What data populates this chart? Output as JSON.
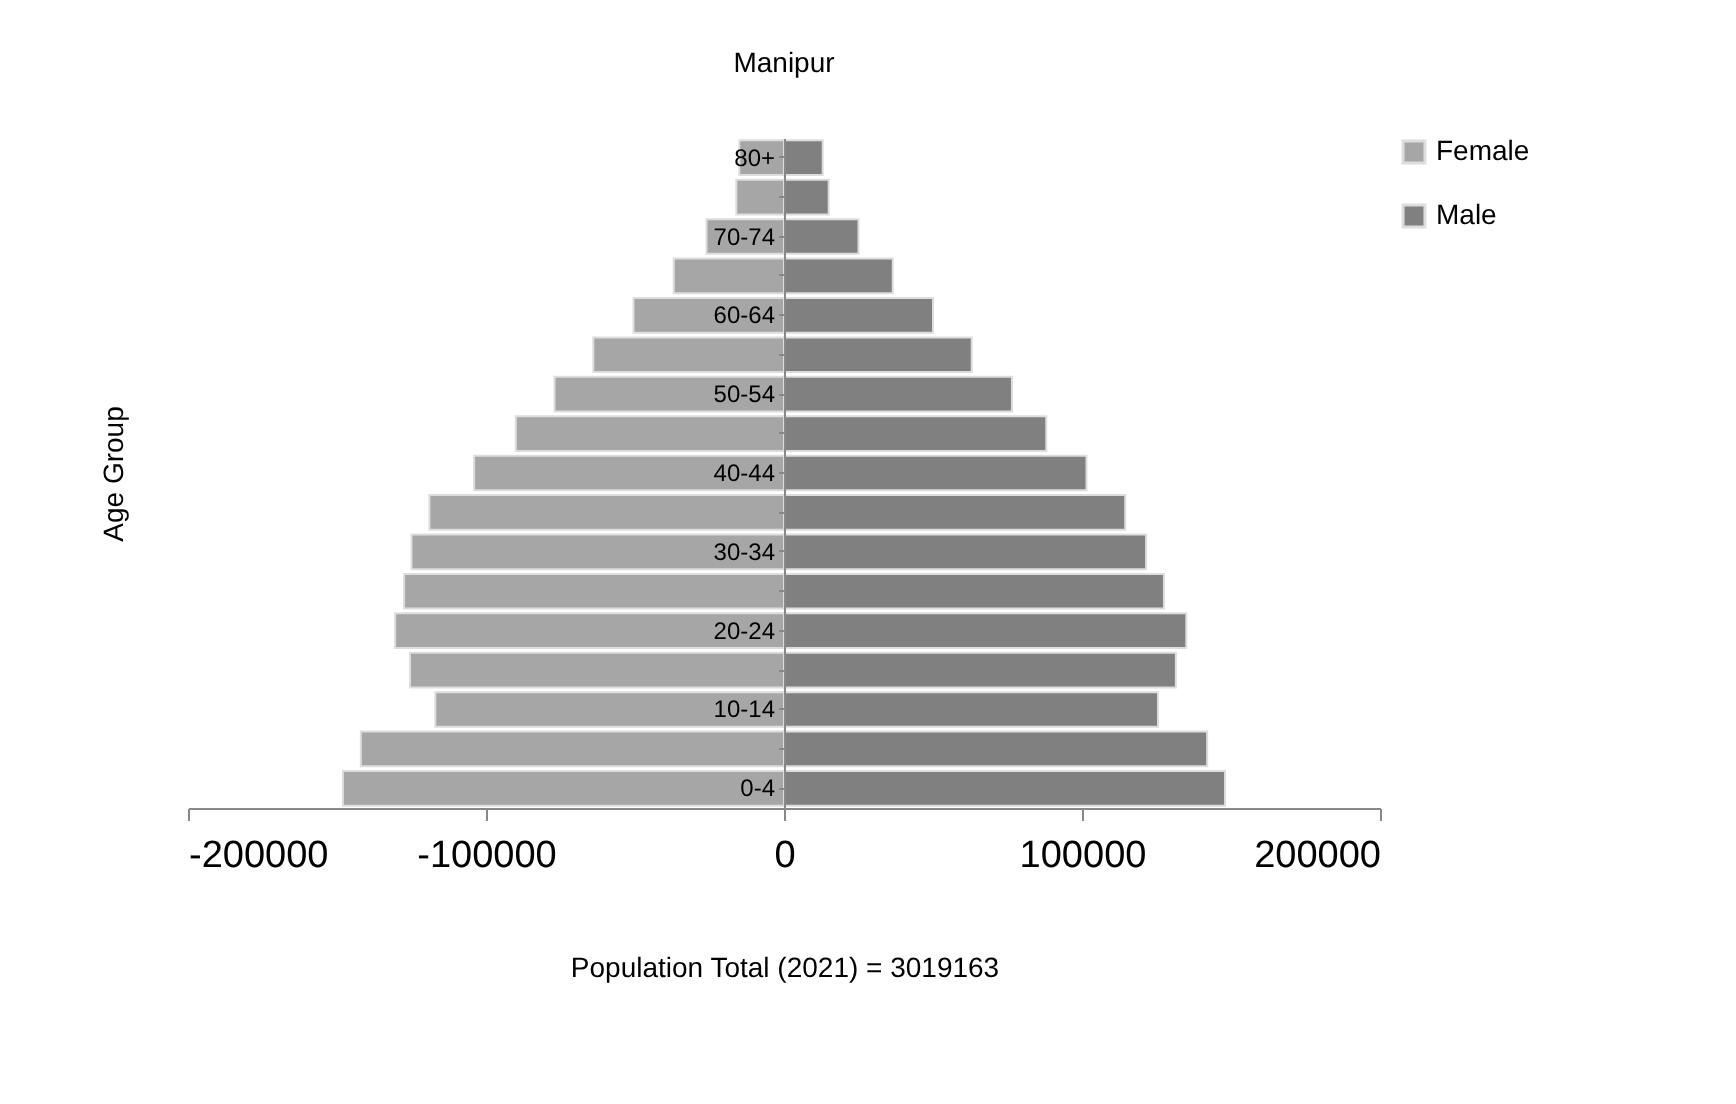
{
  "chart_data": {
    "type": "bar",
    "orientation": "horizontal",
    "title": "Manipur",
    "xlabel": "Population  Total (2021) = 3019163",
    "ylabel": "Age  Group",
    "categories": [
      "80+",
      null,
      "70-74",
      null,
      "60-64",
      null,
      "50-54",
      null,
      "40-44",
      null,
      "30-34",
      null,
      "20-24",
      null,
      "10-14",
      null,
      "0-4"
    ],
    "series": [
      {
        "name": "Female",
        "color": "#a6a6a6",
        "values": [
          -15000,
          -16000,
          -26000,
          -37000,
          -50500,
          -64000,
          -77000,
          -90000,
          -104000,
          -119000,
          -125000,
          -127500,
          -130500,
          -125500,
          -117000,
          -142000,
          -148000
        ]
      },
      {
        "name": "Male",
        "color": "#808080",
        "values": [
          13000,
          15000,
          25000,
          36500,
          50000,
          63000,
          76500,
          88000,
          101500,
          114500,
          121500,
          127500,
          135000,
          131500,
          125500,
          142000,
          148000
        ]
      }
    ],
    "xlim": [
      -200000,
      200000
    ],
    "xticks": [
      -200000,
      -100000,
      0,
      100000,
      200000
    ],
    "grid": false,
    "stacked": true,
    "legend": "top right"
  }
}
